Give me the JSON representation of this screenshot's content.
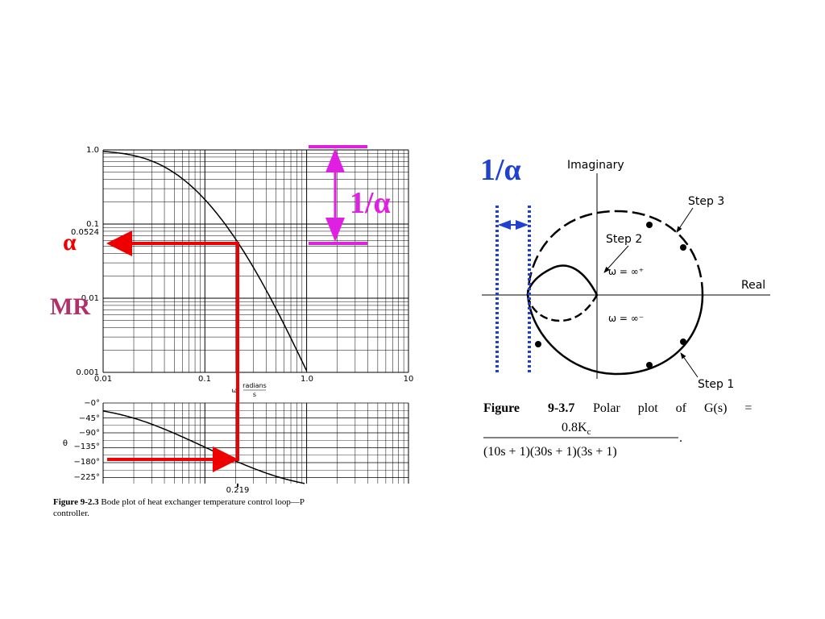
{
  "bode": {
    "magnitude_ticks": [
      "1.0",
      "0.1",
      "0.01",
      "0.001"
    ],
    "alpha_value": "0.0524",
    "frequency_ticks": [
      "0.01",
      "0.1",
      "1.0",
      "10"
    ],
    "x_label_omega": "ω,",
    "x_label_unit_num": "radians",
    "x_label_unit_den": "s",
    "phase_axis": "θ",
    "phase_ticks": [
      "−0°",
      "−45°",
      "−90°",
      "−135°",
      "−180°",
      "−225°"
    ],
    "crossover": "0.219",
    "caption_label": "Figure 9-2.3",
    "caption_text_1": "Bode plot of heat exchanger temperature control loop—P",
    "caption_text_2": "controller."
  },
  "annotations": {
    "alpha": "α",
    "mr": "MR",
    "gain_margin_bode": "1/α",
    "gain_margin_polar": "1/α"
  },
  "polar": {
    "imaginary": "Imaginary",
    "real": "Real",
    "step1": "Step 1",
    "step2": "Step 2",
    "step3": "Step 3",
    "omega_plus": "ω = ∞⁺",
    "omega_minus": "ω = ∞⁻",
    "caption_label": "Figure",
    "caption_number": "9-3.7",
    "caption_text": "Polar plot of G(s) =",
    "numerator": "0.8K",
    "numerator_sub": "c",
    "denominator": "(10s + 1)(30s + 1)(3s + 1)",
    "period": "."
  }
}
